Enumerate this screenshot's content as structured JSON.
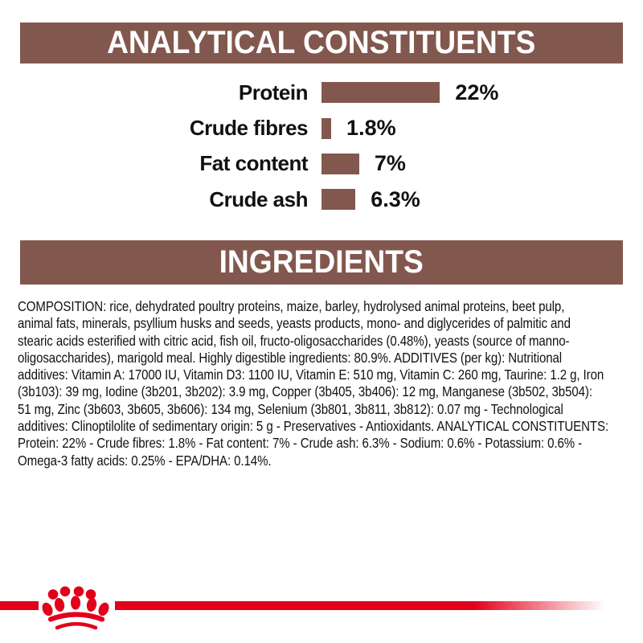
{
  "colors": {
    "brown": "#82584e",
    "brand_red": "#e2001a",
    "text": "#111111",
    "header_text": "#ffffff",
    "background": "#ffffff"
  },
  "headers": {
    "analytical": "ANALYTICAL CONSTITUENTS",
    "ingredients": "INGREDIENTS"
  },
  "chart_data": {
    "type": "bar",
    "orientation": "horizontal",
    "title": "ANALYTICAL CONSTITUENTS",
    "categories": [
      "Protein",
      "Crude fibres",
      "Fat content",
      "Crude ash"
    ],
    "values": [
      22,
      1.8,
      7,
      6.3
    ],
    "value_labels": [
      "22%",
      "1.8%",
      "7%",
      "6.3%"
    ],
    "unit": "%",
    "xlim": [
      0,
      25
    ],
    "grid": false,
    "legend": "none",
    "bar_color": "#82584e"
  },
  "ingredients": {
    "lines": [
      "COMPOSITION: rice, dehydrated poultry proteins, maize, barley, hydrolysed animal proteins, beet pulp,",
      "animal fats, minerals, psyllium husks and seeds, yeasts products, mono- and diglycerides of palmitic and",
      "stearic acids esterified with citric acid, fish oil, fructo-oligosaccharides (0.48%), yeasts (source of manno-",
      "oligosaccharides), marigold meal. Highly digestible ingredients: 80.9%. ADDITIVES (per kg): Nutritional",
      "additives: Vitamin A: 17000 IU, Vitamin D3: 1100 IU, Vitamin E: 510 mg, Vitamin C: 260 mg, Taurine: 1.2 g, Iron",
      "(3b103): 39 mg, Iodine (3b201, 3b202): 3.9 mg, Copper (3b405, 3b406): 12 mg, Manganese (3b502, 3b504):",
      "51 mg, Zinc (3b603, 3b605, 3b606): 134 mg, Selenium (3b801, 3b811, 3b812): 0.07 mg - Technological",
      "additives: Clinoptilolite of sedimentary origin: 5 g - Preservatives - Antioxidants. ANALYTICAL CONSTITUENTS:",
      "Protein: 22% - Crude fibres: 1.8% - Fat content: 7% - Crude ash: 6.3% - Sodium: 0.6% - Potassium: 0.6% -",
      "Omega-3 fatty acids: 0.25% - EPA/DHA: 0.14%."
    ]
  },
  "logo": {
    "name": "royal-canin-crown",
    "color": "#e2001a"
  }
}
